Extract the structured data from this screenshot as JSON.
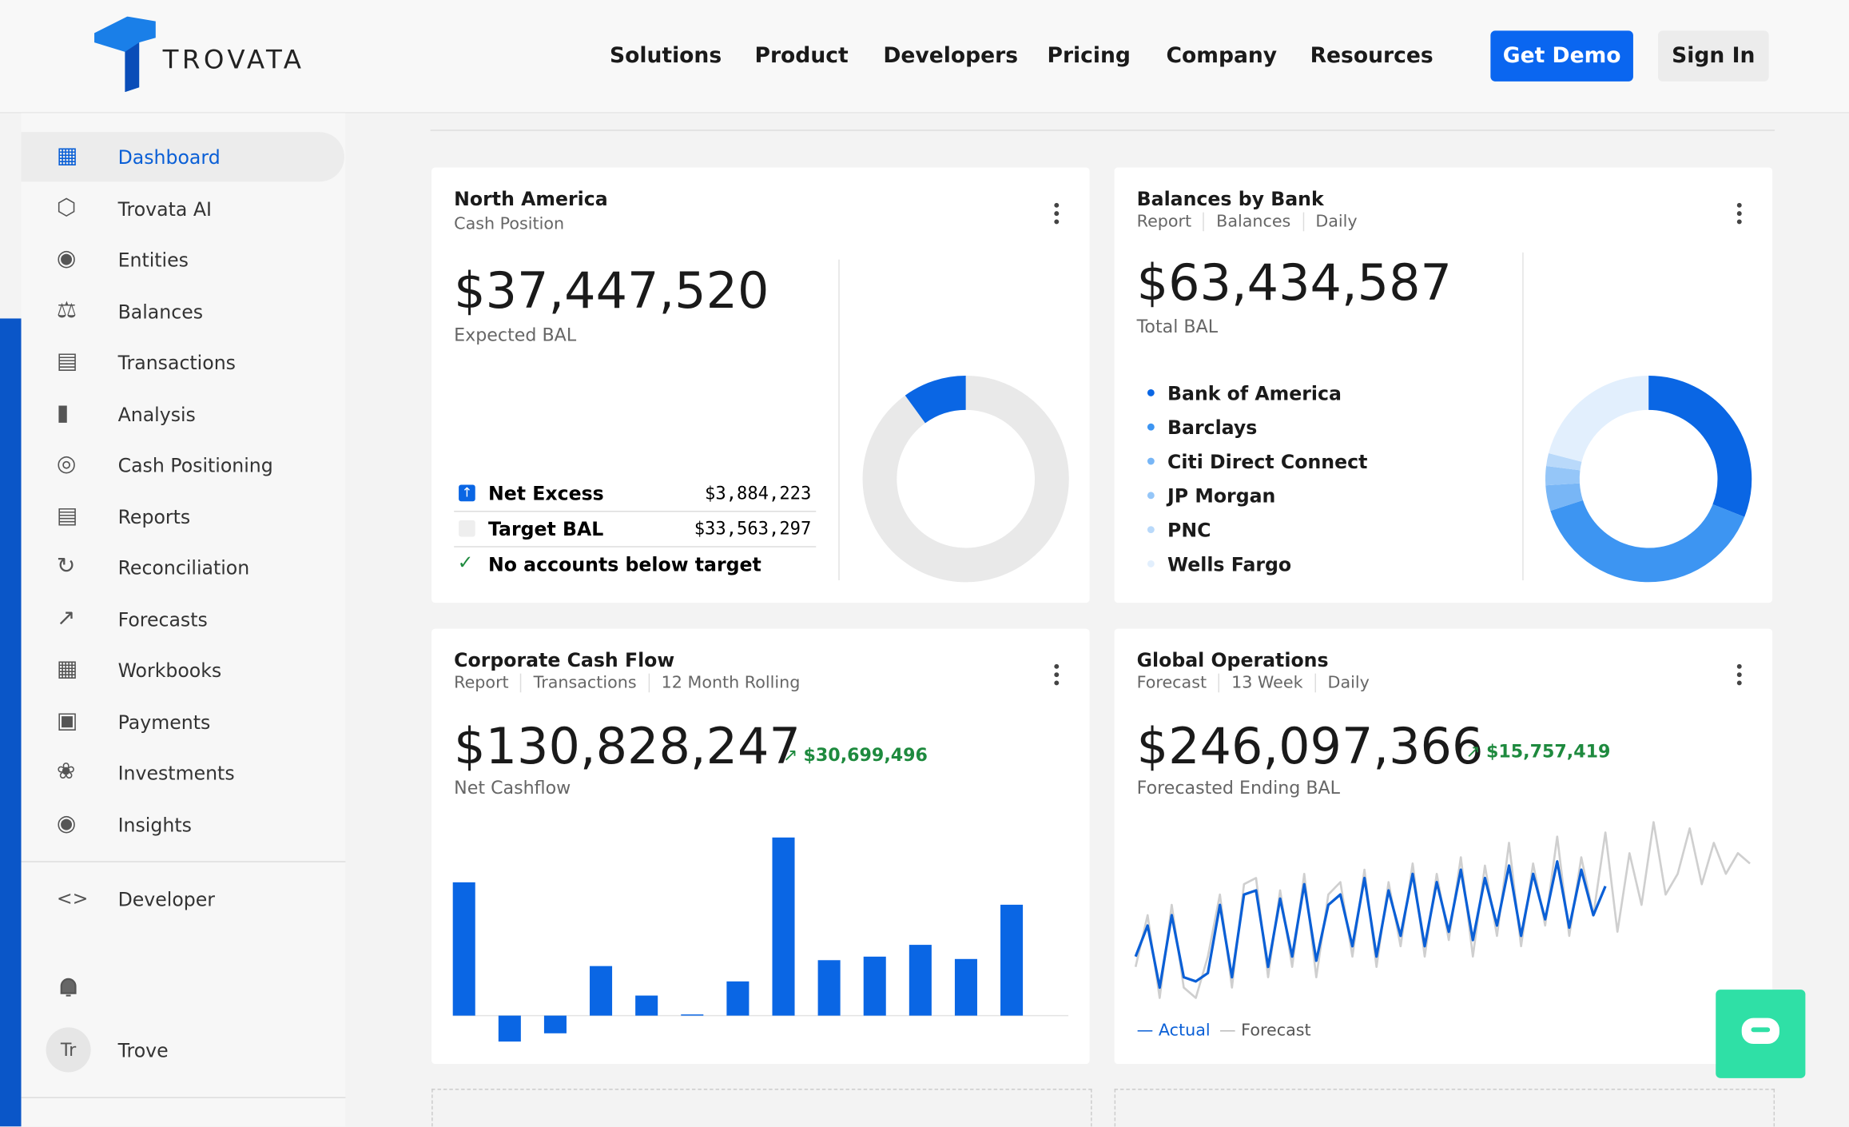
{
  "nav": {
    "logo": "TROVATA",
    "links": [
      "Solutions",
      "Product",
      "Developers",
      "Pricing",
      "Company",
      "Resources"
    ],
    "cta": "Get Demo",
    "sign_in": "Sign In"
  },
  "sidebar": {
    "items": [
      "Dashboard",
      "Trovata AI",
      "Entities",
      "Balances",
      "Transactions",
      "Analysis",
      "Cash Positioning",
      "Reports",
      "Reconciliation",
      "Forecasts",
      "Workbooks",
      "Payments",
      "Investments",
      "Insights"
    ],
    "developer": "Developer",
    "user": {
      "initials": "Tr",
      "name": "Trove"
    }
  },
  "cards": [
    {
      "title": "North America",
      "tags": [
        "Cash Position"
      ],
      "amount": "$37,447,520",
      "amount_label": "Expected BAL",
      "rows": [
        {
          "label": "Net Excess",
          "value": "$3,884,223"
        },
        {
          "label": "Target BAL",
          "value": "$33,563,297"
        }
      ],
      "status": "No accounts below target",
      "chart": {
        "type": "pie",
        "values": [
          90,
          10
        ],
        "colors": [
          "#e9e9e9",
          "#0a66e4"
        ]
      }
    },
    {
      "title": "Balances by Bank",
      "tags": [
        "Report",
        "Balances",
        "Daily"
      ],
      "amount": "$63,434,587",
      "amount_label": "Total BAL",
      "chart": {
        "type": "pie",
        "categories": [
          "Bank of America",
          "Barclays",
          "Citi Direct Connect",
          "JP Morgan",
          "PNC",
          "Wells Fargo"
        ],
        "values": [
          31,
          39,
          4,
          3,
          2,
          21
        ],
        "colors": [
          "#0a66e4",
          "#3d95f2",
          "#78b6f6",
          "#95c6f8",
          "#b9d9fa",
          "#e2effd"
        ]
      }
    },
    {
      "title": "Corporate Cash Flow",
      "tags": [
        "Report",
        "Transactions",
        "12 Month Rolling"
      ],
      "amount": "$130,828,247",
      "change": "$30,699,496",
      "amount_label": "Net Cashflow",
      "chart": {
        "type": "bar",
        "values": [
          113,
          -22,
          -15,
          42,
          17,
          1,
          29,
          151,
          47,
          50,
          60,
          48,
          94
        ],
        "color": "#0a66e4"
      }
    },
    {
      "title": "Global Operations",
      "tags": [
        "Forecast",
        "13 Week",
        "Daily"
      ],
      "amount": "$246,097,366",
      "change": "$15,757,419",
      "amount_label": "Forecasted Ending BAL",
      "chart": {
        "type": "line",
        "series": [
          {
            "name": "Actual",
            "color": "#0a5fd6",
            "values": [
              30,
              45,
              15,
              50,
              20,
              18,
              22,
              55,
              20,
              60,
              62,
              25,
              58,
              30,
              65,
              28,
              55,
              60,
              35,
              68,
              30,
              62,
              40,
              70,
              35,
              66,
              42,
              72,
              38,
              68,
              45,
              74,
              40,
              70,
              48,
              76,
              44,
              72,
              50,
              64
            ]
          },
          {
            "name": "Forecast",
            "color": "#cfcfcf",
            "values": [
              25,
              50,
              10,
              55,
              15,
              10,
              30,
              60,
              15,
              65,
              68,
              20,
              62,
              25,
              70,
              20,
              60,
              66,
              30,
              72,
              25,
              66,
              35,
              75,
              30,
              70,
              38,
              78,
              30,
              74,
              40,
              85,
              35,
              75,
              45,
              88,
              40,
              78,
              50,
              90,
              42,
              80,
              55,
              95,
              60,
              70,
              92,
              65,
              85,
              70,
              80,
              75
            ]
          }
        ]
      }
    }
  ]
}
